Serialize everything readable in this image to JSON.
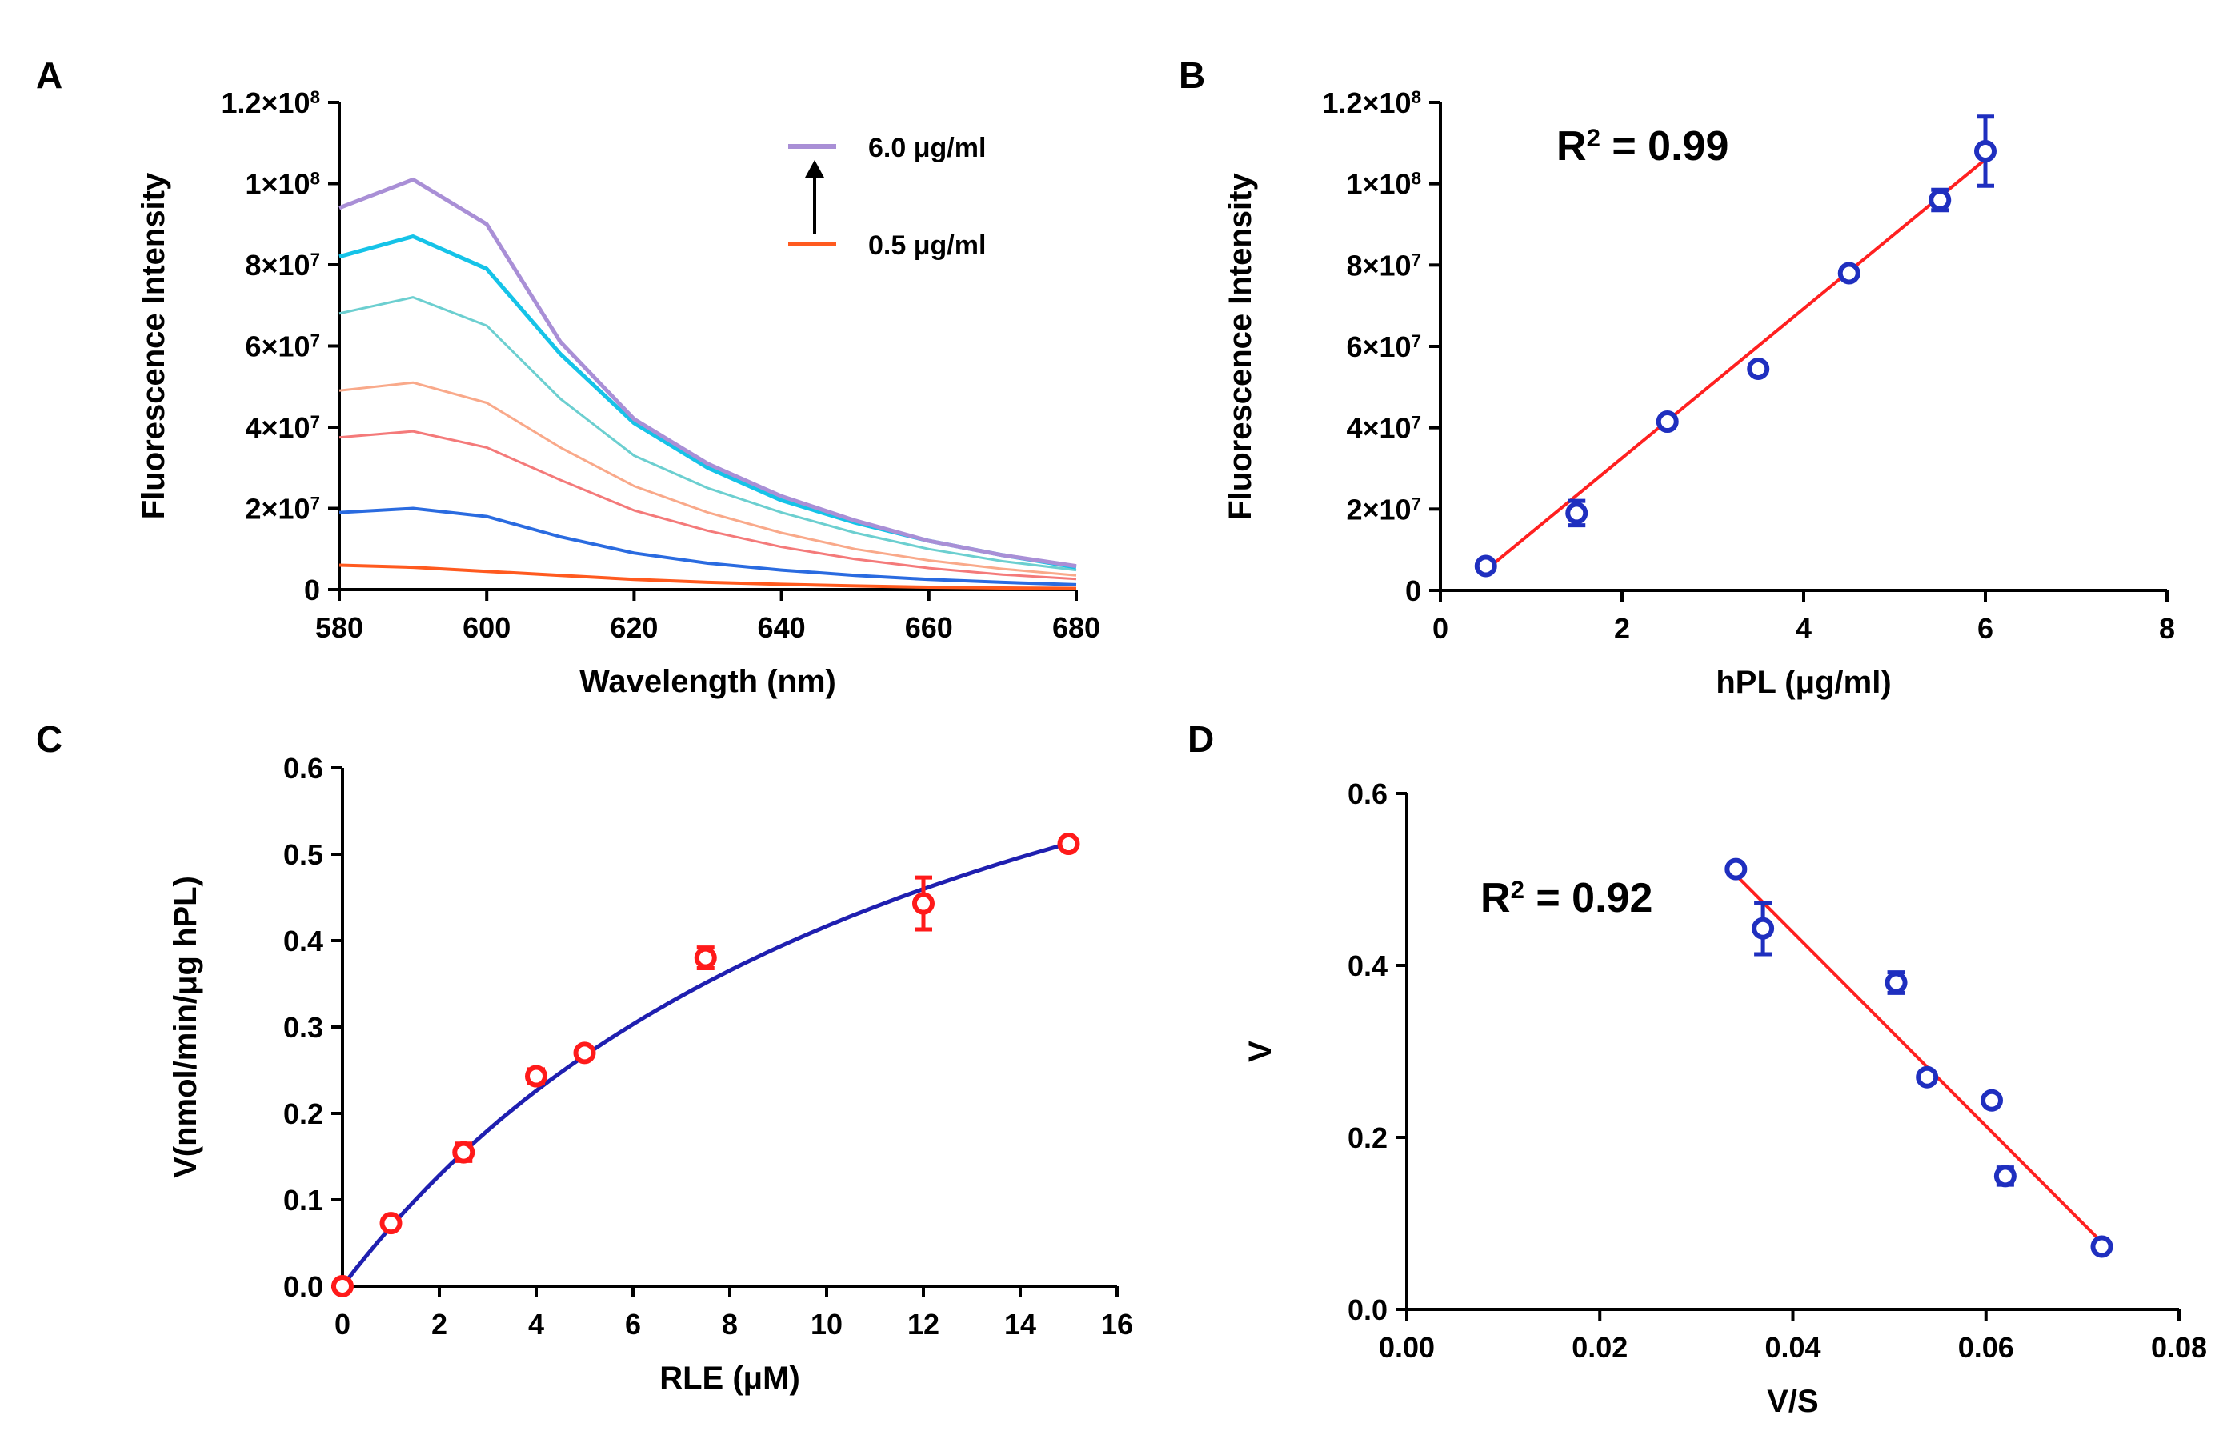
{
  "chart_data": [
    {
      "panel": "A",
      "type": "line",
      "xlabel": "Wavelength (nm)",
      "ylabel": "Fluorescence Intensity",
      "xlim": [
        580,
        680
      ],
      "ylim": [
        0,
        120000000
      ],
      "x_ticks": [
        580,
        600,
        620,
        640,
        660,
        680
      ],
      "y_ticks": [
        {
          "value": 0,
          "label": "0"
        },
        {
          "value": 20000000,
          "label": "2×10",
          "exp": "7"
        },
        {
          "value": 40000000,
          "label": "4×10",
          "exp": "7"
        },
        {
          "value": 60000000,
          "label": "6×10",
          "exp": "7"
        },
        {
          "value": 80000000,
          "label": "8×10",
          "exp": "7"
        },
        {
          "value": 100000000,
          "label": "1×10",
          "exp": "8"
        },
        {
          "value": 120000000,
          "label": "1.2×10",
          "exp": "8"
        }
      ],
      "legend": {
        "placement": "top-right",
        "top_label": "6.0 μg/ml",
        "top_color": "#a98fd6",
        "bottom_label": "0.5 μg/ml",
        "bottom_color": "#ff5a1f"
      },
      "x": [
        580,
        590,
        600,
        610,
        620,
        630,
        640,
        650,
        660,
        670,
        680
      ],
      "series": [
        {
          "color": "#ff5a1f",
          "width": 4,
          "values": [
            6000000,
            5500000,
            4500000,
            3500000,
            2500000,
            1800000,
            1300000,
            900000,
            600000,
            400000,
            300000
          ]
        },
        {
          "color": "#2a6be0",
          "width": 4,
          "values": [
            19000000,
            20000000,
            18000000,
            13000000,
            9000000,
            6500000,
            4800000,
            3500000,
            2500000,
            1800000,
            1200000
          ]
        },
        {
          "color": "#f47a7a",
          "width": 3,
          "values": [
            37500000,
            39000000,
            35000000,
            27000000,
            19500000,
            14500000,
            10500000,
            7500000,
            5300000,
            3700000,
            2600000
          ]
        },
        {
          "color": "#f9a98a",
          "width": 3,
          "values": [
            49000000,
            51000000,
            46000000,
            35000000,
            25500000,
            19000000,
            14000000,
            10000000,
            7200000,
            5100000,
            3500000
          ]
        },
        {
          "color": "#6ccfd0",
          "width": 3,
          "values": [
            68000000,
            72000000,
            65000000,
            47000000,
            33000000,
            25000000,
            19000000,
            14000000,
            10000000,
            7000000,
            4800000
          ]
        },
        {
          "color": "#15c3e8",
          "width": 5,
          "values": [
            82000000,
            87000000,
            79000000,
            58000000,
            41000000,
            30000000,
            22000000,
            16500000,
            12000000,
            8500000,
            5500000
          ]
        },
        {
          "color": "#a98fd6",
          "width": 5,
          "values": [
            94000000,
            101000000,
            90000000,
            61000000,
            42000000,
            31000000,
            23000000,
            17000000,
            12000000,
            8500000,
            5800000
          ]
        }
      ]
    },
    {
      "panel": "B",
      "type": "scatter",
      "xlabel": "hPL (μg/ml)",
      "ylabel": "Fluorescence Intensity",
      "xlim": [
        0,
        8
      ],
      "ylim": [
        0,
        120000000
      ],
      "x_ticks": [
        0,
        2,
        4,
        6,
        8
      ],
      "y_ticks": [
        {
          "value": 0,
          "label": "0"
        },
        {
          "value": 20000000,
          "label": "2×10",
          "exp": "7"
        },
        {
          "value": 40000000,
          "label": "4×10",
          "exp": "7"
        },
        {
          "value": 60000000,
          "label": "6×10",
          "exp": "7"
        },
        {
          "value": 80000000,
          "label": "8×10",
          "exp": "7"
        },
        {
          "value": 100000000,
          "label": "1×10",
          "exp": "8"
        },
        {
          "value": 120000000,
          "label": "1.2×10",
          "exp": "8"
        }
      ],
      "annotation": {
        "prefix": "R",
        "exp": "2",
        "suffix": " = 0.99"
      },
      "marker_color": "#1f2fbf",
      "fit_color": "#ff2020",
      "points": [
        {
          "x": 0.5,
          "y": 6000000,
          "err": 0
        },
        {
          "x": 1.5,
          "y": 19000000,
          "err": 3000000
        },
        {
          "x": 2.5,
          "y": 41500000,
          "err": 0
        },
        {
          "x": 3.5,
          "y": 54500000,
          "err": 0
        },
        {
          "x": 4.5,
          "y": 78000000,
          "err": 0
        },
        {
          "x": 5.5,
          "y": 96000000,
          "err": 2500000
        },
        {
          "x": 6.0,
          "y": 108000000,
          "err": 8500000
        }
      ],
      "fit": {
        "x": [
          0.5,
          6.0
        ],
        "y": [
          5000000,
          106000000
        ]
      }
    },
    {
      "panel": "C",
      "type": "scatter",
      "xlabel": "RLE (μM)",
      "ylabel": "V(nmol/min/μg hPL)",
      "xlim": [
        0,
        16
      ],
      "ylim": [
        0,
        0.6
      ],
      "x_ticks": [
        0,
        2,
        4,
        6,
        8,
        10,
        12,
        14,
        16
      ],
      "y_ticks": [
        {
          "value": 0,
          "label": "0.0"
        },
        {
          "value": 0.1,
          "label": "0.1"
        },
        {
          "value": 0.2,
          "label": "0.2"
        },
        {
          "value": 0.3,
          "label": "0.3"
        },
        {
          "value": 0.4,
          "label": "0.4"
        },
        {
          "value": 0.5,
          "label": "0.5"
        },
        {
          "value": 0.6,
          "label": "0.6"
        }
      ],
      "marker_color": "#ff1a1a",
      "fit_color": "#1f1fb0",
      "points": [
        {
          "x": 0,
          "y": 0.0,
          "err": 0
        },
        {
          "x": 1,
          "y": 0.073,
          "err": 0
        },
        {
          "x": 2.5,
          "y": 0.155,
          "err": 0.01
        },
        {
          "x": 4,
          "y": 0.243,
          "err": 0.008
        },
        {
          "x": 5,
          "y": 0.27,
          "err": 0
        },
        {
          "x": 7.5,
          "y": 0.38,
          "err": 0.012
        },
        {
          "x": 12,
          "y": 0.443,
          "err": 0.03
        },
        {
          "x": 15,
          "y": 0.512,
          "err": 0
        }
      ],
      "fit": {
        "model": "michaelis-menten",
        "vmax": 0.95,
        "km": 12.8,
        "x_range": [
          0,
          15
        ]
      }
    },
    {
      "panel": "D",
      "type": "scatter",
      "xlabel": "V/S",
      "ylabel": "V",
      "xlim": [
        0,
        0.08
      ],
      "ylim": [
        0,
        0.6
      ],
      "x_ticks": [
        {
          "value": 0,
          "label": "0.00"
        },
        {
          "value": 0.02,
          "label": "0.02"
        },
        {
          "value": 0.04,
          "label": "0.04"
        },
        {
          "value": 0.06,
          "label": "0.06"
        },
        {
          "value": 0.08,
          "label": "0.08"
        }
      ],
      "y_ticks": [
        {
          "value": 0,
          "label": "0.0"
        },
        {
          "value": 0.2,
          "label": "0.2"
        },
        {
          "value": 0.4,
          "label": "0.4"
        },
        {
          "value": 0.6,
          "label": "0.6"
        }
      ],
      "annotation": {
        "prefix": "R",
        "exp": "2",
        "suffix": " = 0.92"
      },
      "marker_color": "#1f2fbf",
      "fit_color": "#ff2020",
      "points": [
        {
          "x": 0.0341,
          "y": 0.512,
          "err": 0
        },
        {
          "x": 0.0369,
          "y": 0.443,
          "err": 0.03
        },
        {
          "x": 0.0507,
          "y": 0.38,
          "err": 0.012
        },
        {
          "x": 0.0539,
          "y": 0.27,
          "err": 0
        },
        {
          "x": 0.0606,
          "y": 0.243,
          "err": 0
        },
        {
          "x": 0.062,
          "y": 0.155,
          "err": 0.01
        },
        {
          "x": 0.072,
          "y": 0.073,
          "err": 0
        }
      ],
      "fit": {
        "x": [
          0.0341,
          0.072
        ],
        "y": [
          0.505,
          0.078
        ]
      }
    }
  ]
}
